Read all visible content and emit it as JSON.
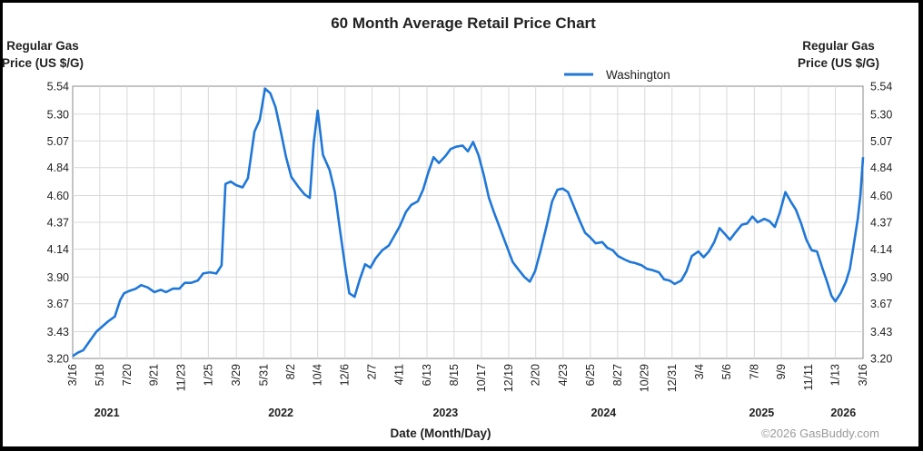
{
  "chart_data": {
    "type": "line",
    "title": "60 Month Average Retail Price Chart",
    "ylabel_left": [
      "Regular Gas",
      "Price (US $/G)"
    ],
    "ylabel_right": [
      "Regular Gas",
      "Price (US $/G)"
    ],
    "xlabel": "Date (Month/Day)",
    "copyright": "©2026 GasBuddy.com",
    "ylim": [
      3.2,
      5.54
    ],
    "yticks": [
      "5.54",
      "5.30",
      "5.07",
      "4.84",
      "4.60",
      "4.37",
      "4.14",
      "3.90",
      "3.67",
      "3.43",
      "3.20"
    ],
    "xlim_months": [
      0,
      60
    ],
    "xticks": [
      {
        "label": "3/16",
        "m": 0.0
      },
      {
        "label": "5/18",
        "m": 2.06
      },
      {
        "label": "7/20",
        "m": 4.13
      },
      {
        "label": "9/21",
        "m": 6.17
      },
      {
        "label": "11/23",
        "m": 8.23
      },
      {
        "label": "1/25",
        "m": 10.3
      },
      {
        "label": "3/29",
        "m": 12.43
      },
      {
        "label": "5/31",
        "m": 14.5
      },
      {
        "label": "8/2",
        "m": 16.56
      },
      {
        "label": "10/4",
        "m": 18.6
      },
      {
        "label": "12/6",
        "m": 20.67
      },
      {
        "label": "2/7",
        "m": 22.73
      },
      {
        "label": "4/11",
        "m": 24.8
      },
      {
        "label": "6/13",
        "m": 26.9
      },
      {
        "label": "8/15",
        "m": 28.95
      },
      {
        "label": "10/17",
        "m": 31.03
      },
      {
        "label": "12/19",
        "m": 33.1
      },
      {
        "label": "2/20",
        "m": 35.15
      },
      {
        "label": "4/23",
        "m": 37.23
      },
      {
        "label": "6/25",
        "m": 39.3
      },
      {
        "label": "8/27",
        "m": 41.37
      },
      {
        "label": "10/29",
        "m": 43.43
      },
      {
        "label": "12/31",
        "m": 45.5
      },
      {
        "label": "3/4",
        "m": 47.6
      },
      {
        "label": "5/6",
        "m": 49.65
      },
      {
        "label": "7/8",
        "m": 51.75
      },
      {
        "label": "9/9",
        "m": 53.8
      },
      {
        "label": "11/11",
        "m": 55.85
      },
      {
        "label": "1/13",
        "m": 57.9
      },
      {
        "label": "3/16",
        "m": 60.0
      }
    ],
    "years": [
      {
        "label": "2021",
        "m": 2.6
      },
      {
        "label": "2022",
        "m": 15.8
      },
      {
        "label": "2023",
        "m": 28.3
      },
      {
        "label": "2024",
        "m": 40.3
      },
      {
        "label": "2025",
        "m": 52.3
      },
      {
        "label": "2026",
        "m": 58.5
      }
    ],
    "series": [
      {
        "name": "Washington",
        "color": "#1f77d8",
        "points": [
          [
            0,
            3.22
          ],
          [
            0.4,
            3.25
          ],
          [
            0.8,
            3.27
          ],
          [
            1.3,
            3.35
          ],
          [
            1.8,
            3.43
          ],
          [
            2.2,
            3.47
          ],
          [
            2.7,
            3.52
          ],
          [
            3.2,
            3.56
          ],
          [
            3.6,
            3.7
          ],
          [
            3.9,
            3.76
          ],
          [
            4.3,
            3.78
          ],
          [
            4.8,
            3.8
          ],
          [
            5.2,
            3.83
          ],
          [
            5.7,
            3.81
          ],
          [
            6.2,
            3.77
          ],
          [
            6.7,
            3.79
          ],
          [
            7.1,
            3.77
          ],
          [
            7.6,
            3.8
          ],
          [
            8.1,
            3.8
          ],
          [
            8.5,
            3.85
          ],
          [
            9.0,
            3.85
          ],
          [
            9.5,
            3.87
          ],
          [
            9.9,
            3.93
          ],
          [
            10.4,
            3.94
          ],
          [
            10.9,
            3.93
          ],
          [
            11.3,
            4.0
          ],
          [
            11.6,
            4.7
          ],
          [
            12.0,
            4.72
          ],
          [
            12.4,
            4.69
          ],
          [
            12.9,
            4.67
          ],
          [
            13.3,
            4.75
          ],
          [
            13.8,
            5.15
          ],
          [
            14.2,
            5.25
          ],
          [
            14.6,
            5.52
          ],
          [
            15.0,
            5.48
          ],
          [
            15.4,
            5.36
          ],
          [
            15.8,
            5.15
          ],
          [
            16.2,
            4.93
          ],
          [
            16.6,
            4.76
          ],
          [
            17.1,
            4.68
          ],
          [
            17.6,
            4.61
          ],
          [
            18.0,
            4.58
          ],
          [
            18.3,
            5.05
          ],
          [
            18.6,
            5.33
          ],
          [
            19.0,
            4.95
          ],
          [
            19.5,
            4.82
          ],
          [
            19.9,
            4.63
          ],
          [
            20.3,
            4.3
          ],
          [
            20.7,
            3.98
          ],
          [
            21.0,
            3.76
          ],
          [
            21.4,
            3.73
          ],
          [
            21.8,
            3.88
          ],
          [
            22.2,
            4.01
          ],
          [
            22.6,
            3.98
          ],
          [
            23.0,
            4.06
          ],
          [
            23.5,
            4.13
          ],
          [
            24.0,
            4.17
          ],
          [
            24.4,
            4.25
          ],
          [
            24.8,
            4.33
          ],
          [
            25.3,
            4.46
          ],
          [
            25.7,
            4.52
          ],
          [
            26.2,
            4.55
          ],
          [
            26.6,
            4.65
          ],
          [
            27.0,
            4.8
          ],
          [
            27.4,
            4.93
          ],
          [
            27.8,
            4.88
          ],
          [
            28.3,
            4.94
          ],
          [
            28.7,
            5.0
          ],
          [
            29.1,
            5.02
          ],
          [
            29.6,
            5.03
          ],
          [
            30.0,
            4.98
          ],
          [
            30.4,
            5.06
          ],
          [
            30.8,
            4.95
          ],
          [
            31.2,
            4.78
          ],
          [
            31.6,
            4.58
          ],
          [
            32.0,
            4.45
          ],
          [
            32.5,
            4.3
          ],
          [
            33.0,
            4.15
          ],
          [
            33.4,
            4.03
          ],
          [
            33.8,
            3.97
          ],
          [
            34.3,
            3.9
          ],
          [
            34.7,
            3.86
          ],
          [
            35.1,
            3.95
          ],
          [
            35.5,
            4.12
          ],
          [
            36.0,
            4.35
          ],
          [
            36.4,
            4.55
          ],
          [
            36.8,
            4.65
          ],
          [
            37.2,
            4.66
          ],
          [
            37.6,
            4.63
          ],
          [
            38.0,
            4.52
          ],
          [
            38.5,
            4.38
          ],
          [
            38.9,
            4.28
          ],
          [
            39.3,
            4.24
          ],
          [
            39.7,
            4.19
          ],
          [
            40.2,
            4.2
          ],
          [
            40.6,
            4.15
          ],
          [
            41.0,
            4.13
          ],
          [
            41.4,
            4.08
          ],
          [
            41.9,
            4.05
          ],
          [
            42.3,
            4.03
          ],
          [
            42.7,
            4.02
          ],
          [
            43.2,
            4.0
          ],
          [
            43.6,
            3.97
          ],
          [
            44.0,
            3.96
          ],
          [
            44.5,
            3.94
          ],
          [
            44.9,
            3.88
          ],
          [
            45.3,
            3.87
          ],
          [
            45.7,
            3.84
          ],
          [
            46.2,
            3.87
          ],
          [
            46.6,
            3.95
          ],
          [
            47.0,
            4.08
          ],
          [
            47.5,
            4.12
          ],
          [
            47.9,
            4.07
          ],
          [
            48.3,
            4.12
          ],
          [
            48.7,
            4.2
          ],
          [
            49.1,
            4.32
          ],
          [
            49.5,
            4.27
          ],
          [
            49.9,
            4.22
          ],
          [
            50.3,
            4.28
          ],
          [
            50.8,
            4.35
          ],
          [
            51.2,
            4.36
          ],
          [
            51.6,
            4.42
          ],
          [
            52.0,
            4.37
          ],
          [
            52.5,
            4.4
          ],
          [
            52.9,
            4.38
          ],
          [
            53.3,
            4.33
          ],
          [
            53.7,
            4.46
          ],
          [
            54.1,
            4.63
          ],
          [
            54.5,
            4.55
          ],
          [
            54.9,
            4.48
          ],
          [
            55.3,
            4.36
          ],
          [
            55.7,
            4.22
          ],
          [
            56.1,
            4.13
          ],
          [
            56.5,
            4.12
          ],
          [
            56.9,
            3.98
          ],
          [
            57.3,
            3.85
          ],
          [
            57.6,
            3.74
          ],
          [
            57.9,
            3.69
          ],
          [
            58.3,
            3.76
          ],
          [
            58.7,
            3.86
          ],
          [
            59.0,
            3.97
          ],
          [
            59.3,
            4.18
          ],
          [
            59.6,
            4.4
          ],
          [
            59.8,
            4.6
          ],
          [
            60.0,
            4.93
          ]
        ]
      }
    ]
  }
}
